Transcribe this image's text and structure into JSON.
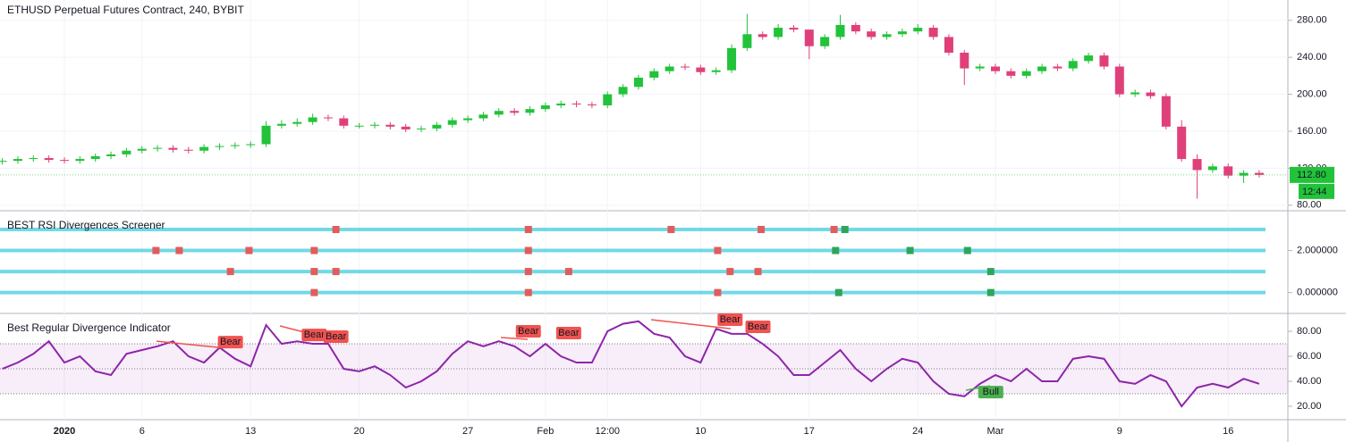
{
  "chart_data": [
    {
      "type": "candlestick",
      "title": "ETHUSD Perpetual Futures Contract, 240, BYBIT",
      "categories": [
        null,
        null,
        null,
        null,
        "2020",
        null,
        null,
        null,
        null,
        "6",
        null,
        null,
        null,
        null,
        null,
        null,
        "13",
        null,
        null,
        null,
        null,
        null,
        null,
        "20",
        null,
        null,
        null,
        null,
        null,
        null,
        "27",
        null,
        null,
        null,
        null,
        "Feb",
        null,
        null,
        null,
        "12:00",
        null,
        null,
        null,
        null,
        null,
        "10",
        null,
        null,
        null,
        null,
        null,
        null,
        "17",
        null,
        null,
        null,
        null,
        null,
        null,
        "24",
        null,
        null,
        null,
        null,
        "Mar",
        null,
        null,
        null,
        null,
        null,
        null,
        null,
        "9",
        null,
        null,
        null,
        null,
        null,
        null,
        "16",
        null,
        null
      ],
      "open": [
        127,
        128,
        130,
        131,
        129,
        128,
        130,
        133,
        135,
        139,
        141,
        142,
        140,
        139,
        143,
        144,
        145,
        146,
        166,
        168,
        170,
        175,
        174,
        166,
        166,
        167,
        165,
        162,
        163,
        167,
        172,
        174,
        178,
        182,
        180,
        184,
        188,
        190,
        189,
        188,
        200,
        208,
        218,
        225,
        230,
        229,
        224,
        226,
        250,
        265,
        262,
        272,
        270,
        252,
        262,
        275,
        268,
        262,
        265,
        268,
        272,
        262,
        245,
        228,
        230,
        225,
        220,
        225,
        230,
        228,
        236,
        242,
        230,
        200,
        202,
        198,
        165,
        130,
        118,
        122,
        112,
        115
      ],
      "high": [
        131,
        133,
        134,
        134,
        132,
        133,
        136,
        138,
        142,
        144,
        145,
        145,
        143,
        146,
        147,
        148,
        149,
        171,
        172,
        174,
        179,
        178,
        177,
        169,
        170,
        170,
        168,
        166,
        170,
        175,
        177,
        181,
        185,
        185,
        187,
        191,
        193,
        193,
        192,
        203,
        211,
        221,
        228,
        233,
        233,
        232,
        229,
        254,
        287,
        268,
        276,
        275,
        270,
        265,
        286,
        278,
        271,
        268,
        271,
        276,
        275,
        265,
        248,
        233,
        233,
        228,
        228,
        233,
        233,
        239,
        245,
        245,
        233,
        205,
        205,
        201,
        172,
        135,
        125,
        125,
        118,
        118
      ],
      "low": [
        124,
        125,
        127,
        126,
        125,
        125,
        127,
        130,
        132,
        136,
        138,
        137,
        136,
        136,
        140,
        141,
        142,
        143,
        163,
        165,
        167,
        171,
        163,
        163,
        163,
        162,
        159,
        159,
        160,
        164,
        169,
        171,
        175,
        177,
        177,
        181,
        185,
        186,
        185,
        185,
        197,
        205,
        215,
        222,
        226,
        221,
        221,
        223,
        247,
        259,
        259,
        267,
        238,
        249,
        259,
        265,
        259,
        259,
        262,
        265,
        259,
        242,
        210,
        225,
        222,
        217,
        217,
        222,
        225,
        225,
        233,
        227,
        197,
        197,
        195,
        162,
        127,
        87,
        115,
        109,
        104,
        110
      ],
      "close": [
        128,
        130,
        131,
        129,
        128,
        130,
        133,
        135,
        139,
        141,
        142,
        140,
        139,
        143,
        144,
        145,
        146,
        166,
        168,
        170,
        175,
        174,
        166,
        166,
        167,
        165,
        162,
        163,
        167,
        172,
        174,
        178,
        182,
        180,
        184,
        188,
        190,
        189,
        188,
        200,
        208,
        218,
        225,
        230,
        229,
        224,
        226,
        250,
        265,
        262,
        272,
        270,
        252,
        262,
        275,
        268,
        262,
        265,
        268,
        272,
        262,
        245,
        228,
        230,
        225,
        220,
        225,
        230,
        228,
        236,
        242,
        230,
        200,
        202,
        198,
        165,
        130,
        118,
        122,
        112,
        115,
        112.8
      ],
      "up_color": "#22c33a",
      "down_color": "#e0407a",
      "ylim": [
        75,
        302
      ],
      "yticks": [
        {
          "value": 80,
          "label": "80.00"
        },
        {
          "value": 120,
          "label": "120.00"
        },
        {
          "value": 160,
          "label": "160.00"
        },
        {
          "value": 200,
          "label": "200.00"
        },
        {
          "value": 240,
          "label": "240.00"
        },
        {
          "value": 280,
          "label": "280.00"
        }
      ],
      "grid": true,
      "last_price": {
        "value": 112.8,
        "label": "112.80"
      },
      "countdown": "12:44",
      "price_tag_color": "#22c33a"
    },
    {
      "type": "scatter",
      "title": "BEST RSI Divergences Screener",
      "series": [
        {
          "color": "#e25c5c",
          "x": [
            21.5,
            33.9,
            43.1,
            48.9,
            53.6,
            9.9,
            11.4,
            15.9,
            20.1,
            33.9,
            46.1,
            14.7,
            20.1,
            21.5,
            33.9,
            36.5,
            46.9,
            48.7,
            20.1,
            33.9,
            46.1
          ],
          "values": [
            3,
            3,
            3,
            3,
            3,
            2,
            2,
            2,
            2,
            2,
            2,
            1,
            1,
            1,
            1,
            1,
            1,
            1,
            0,
            0,
            0
          ]
        },
        {
          "color": "#2ea55a",
          "x": [
            54.3,
            53.7,
            58.5,
            62.2,
            63.7,
            53.9,
            63.7
          ],
          "values": [
            3,
            2,
            2,
            2,
            1,
            0,
            0
          ]
        }
      ],
      "levels": [
        0,
        1,
        2,
        3
      ],
      "level_color": "#4dd0e1",
      "ylim": [
        -0.95,
        3.85
      ],
      "yticks": [
        {
          "value": 0,
          "label": "0.000000"
        },
        {
          "value": 2,
          "label": "2.000000"
        }
      ]
    },
    {
      "type": "line",
      "title": "Best Regular Divergence Indicator",
      "values": [
        50,
        55,
        62,
        72,
        55,
        60,
        48,
        45,
        62,
        65,
        68,
        72,
        60,
        55,
        67,
        58,
        52,
        85,
        70,
        72,
        70,
        70,
        50,
        48,
        52,
        45,
        35,
        40,
        48,
        62,
        72,
        68,
        72,
        68,
        60,
        70,
        60,
        55,
        55,
        80,
        86,
        88,
        78,
        75,
        60,
        55,
        82,
        78,
        78,
        70,
        60,
        45,
        45,
        55,
        65,
        50,
        40,
        50,
        58,
        55,
        40,
        30,
        28,
        38,
        45,
        40,
        50,
        40,
        40,
        58,
        60,
        58,
        40,
        38,
        45,
        40,
        20,
        35,
        38,
        35,
        42,
        38
      ],
      "color": "#8e24aa",
      "levels": [
        30,
        50,
        70
      ],
      "band_color": "#9c27b0",
      "ylim": [
        9.3,
        93.6
      ],
      "yticks": [
        {
          "value": 20,
          "label": "20.00"
        },
        {
          "value": 40,
          "label": "40.00"
        },
        {
          "value": 60,
          "label": "60.00"
        },
        {
          "value": 80,
          "label": "80.00"
        }
      ],
      "divergences": [
        {
          "x": [
            9.94,
            13.97
          ],
          "y": [
            72.1,
            67.1
          ],
          "color": "#f05350"
        },
        {
          "x": [
            17.89,
            20.14
          ],
          "y": [
            84.3,
            77.1
          ],
          "color": "#f05350"
        },
        {
          "x": [
            32.13,
            33.86
          ],
          "y": [
            75,
            73.6
          ],
          "color": "#f05350"
        },
        {
          "x": [
            41.81,
            46.94
          ],
          "y": [
            89.3,
            82.1
          ],
          "color": "#f05350"
        },
        {
          "x": [
            62.1,
            63.65
          ],
          "y": [
            32.9,
            36.4
          ],
          "color": "#4caf50"
        }
      ],
      "annotations": [
        {
          "text": "Bear",
          "x": 14.7,
          "y": 71.4,
          "color": "#f05350"
        },
        {
          "text": "Bear",
          "x": 20.1,
          "y": 77.1,
          "color": "#f05350"
        },
        {
          "text": "Bear",
          "x": 21.5,
          "y": 75.7,
          "color": "#f05350"
        },
        {
          "text": "Bear",
          "x": 33.9,
          "y": 80,
          "color": "#f05350"
        },
        {
          "text": "Bear",
          "x": 36.5,
          "y": 78.6,
          "color": "#f05350"
        },
        {
          "text": "Bear",
          "x": 46.9,
          "y": 89.3,
          "color": "#f05350"
        },
        {
          "text": "Bear",
          "x": 48.7,
          "y": 83.6,
          "color": "#f05350"
        },
        {
          "text": "Bull",
          "x": 63.7,
          "y": 31.4,
          "color": "#4caf50"
        }
      ]
    }
  ]
}
